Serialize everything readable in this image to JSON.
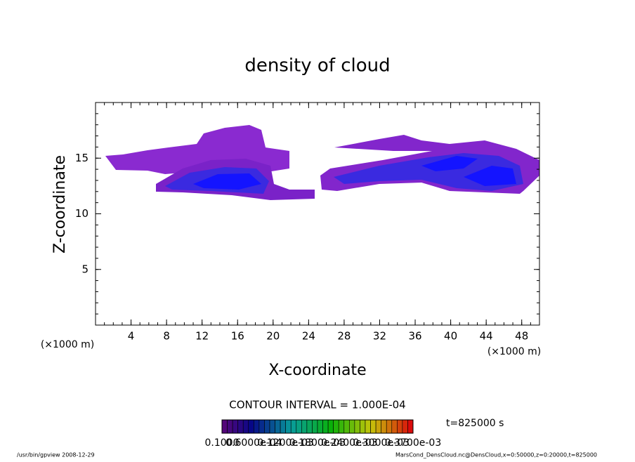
{
  "chart_data": {
    "type": "contour",
    "title": "density of cloud",
    "xlabel": "X-coordinate",
    "ylabel": "Z-coordinate",
    "xunit": "(×1000 m)",
    "yunit": "(×1000 m)",
    "xlim": [
      0,
      50
    ],
    "ylim": [
      0,
      20
    ],
    "xticks": [
      4,
      8,
      12,
      16,
      20,
      24,
      28,
      32,
      36,
      40,
      44,
      48
    ],
    "yticks": [
      5,
      10,
      15
    ],
    "contour_interval": "CONTOUR INTERVAL = 1.000E-04",
    "time": "t=825000 s",
    "colorbar_labels": [
      "0.1000",
      "0.6000e-04",
      "0.1200e-03",
      "0.1800e-03",
      "0.2400e-03",
      "0.3000e-03",
      "0.3700e-03"
    ],
    "footer_left": "/usr/bin/gpview   2008-12-29",
    "footer_right": "MarsCond_DensCloud.nc@DensCloud,x=0:50000,z=0:20000,t=825000"
  }
}
